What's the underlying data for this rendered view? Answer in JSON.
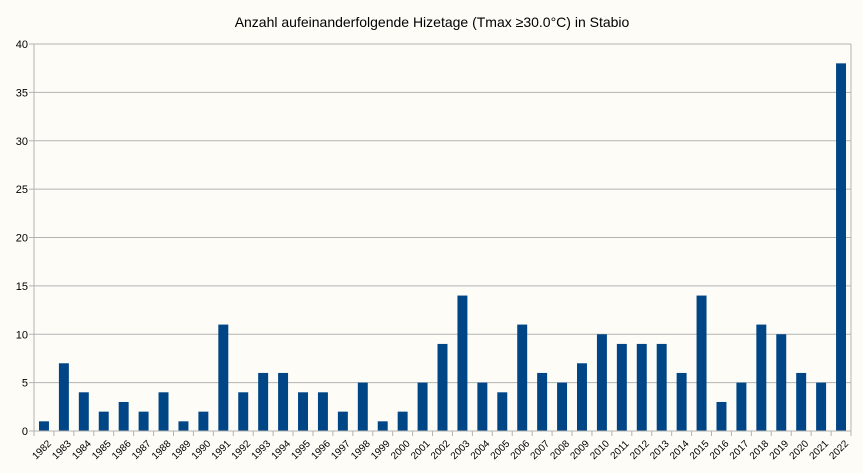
{
  "chart_data": {
    "type": "bar",
    "title": "Anzahl aufeinanderfolgende Hizetage (Tmax ≥30.0°C) in Stabio",
    "xlabel": "",
    "ylabel": "",
    "ylim": [
      0,
      40
    ],
    "yticks": [
      0,
      5,
      10,
      15,
      20,
      25,
      30,
      35,
      40
    ],
    "grid": true,
    "legend": "none",
    "bar_color": "#004586",
    "categories": [
      "1982",
      "1983",
      "1984",
      "1985",
      "1986",
      "1987",
      "1988",
      "1989",
      "1990",
      "1991",
      "1992",
      "1993",
      "1994",
      "1995",
      "1996",
      "1997",
      "1998",
      "1999",
      "2000",
      "2001",
      "2002",
      "2003",
      "2004",
      "2005",
      "2006",
      "2007",
      "2008",
      "2009",
      "2010",
      "2011",
      "2012",
      "2013",
      "2014",
      "2015",
      "2016",
      "2017",
      "2018",
      "2019",
      "2020",
      "2021",
      "2022"
    ],
    "values": [
      1,
      7,
      4,
      2,
      3,
      2,
      4,
      1,
      2,
      11,
      4,
      6,
      6,
      4,
      4,
      2,
      5,
      1,
      2,
      5,
      9,
      14,
      5,
      4,
      11,
      6,
      5,
      7,
      10,
      9,
      9,
      9,
      6,
      14,
      3,
      5,
      11,
      10,
      6,
      5,
      38
    ]
  }
}
